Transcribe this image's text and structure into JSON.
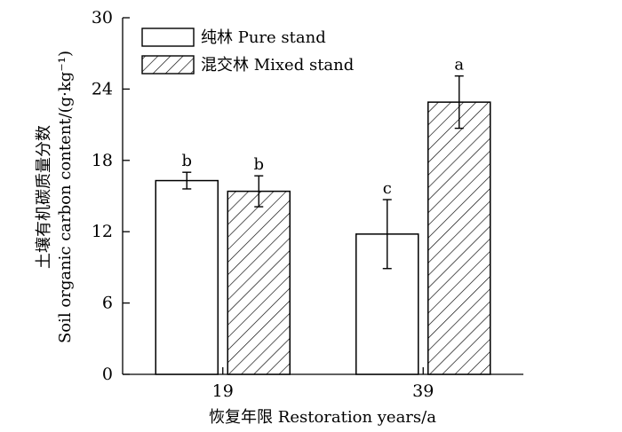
{
  "chart_data": {
    "type": "bar",
    "categories": [
      "19",
      "39"
    ],
    "series": [
      {
        "name": "纯林 Pure stand",
        "values": [
          16.3,
          11.8
        ],
        "errors": [
          0.7,
          2.9
        ],
        "labels": [
          "b",
          "c"
        ],
        "fill": "white"
      },
      {
        "name": "混交林 Mixed stand",
        "values": [
          15.4,
          22.9
        ],
        "errors": [
          1.3,
          2.2
        ],
        "labels": [
          "b",
          "a"
        ],
        "fill": "hatched"
      }
    ],
    "xlabel": "恢复年限 Restoration years/a",
    "ylabel_line1": "土壤有机碳质量分数",
    "ylabel_line2": "Soil organic carbon content/(g·kg⁻¹)",
    "ylim": [
      0,
      30
    ],
    "yticks": [
      0,
      6,
      12,
      18,
      24,
      30
    ],
    "legend_position": "top-left",
    "grid": false,
    "colors": {
      "stroke": "#000000",
      "fill": "#ffffff"
    }
  }
}
